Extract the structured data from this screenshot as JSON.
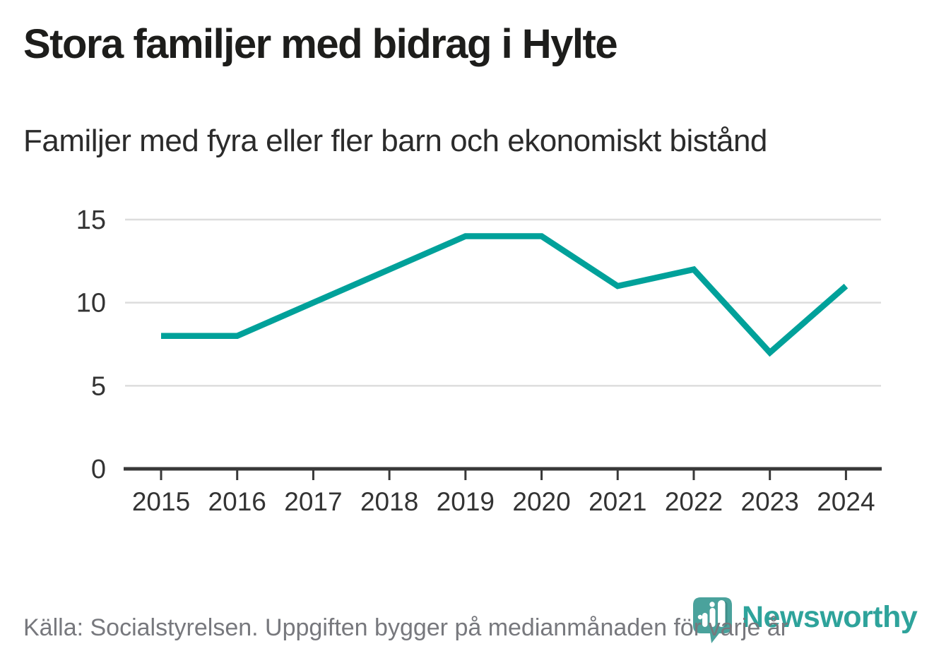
{
  "header": {
    "title": "Stora familjer med bidrag i Hylte",
    "subtitle": "Familjer med fyra eller fler barn och ekonomiskt bistånd"
  },
  "chart_data": {
    "type": "line",
    "title": "Stora familjer med bidrag i Hylte",
    "subtitle": "Familjer med fyra eller fler barn och ekonomiskt bistånd",
    "categories": [
      "2015",
      "2016",
      "2017",
      "2018",
      "2019",
      "2020",
      "2021",
      "2022",
      "2023",
      "2024"
    ],
    "series": [
      {
        "name": "Familjer med fyra eller fler barn och ekonomiskt bistånd",
        "values": [
          8,
          8,
          10,
          12,
          14,
          14,
          11,
          12,
          7,
          11
        ]
      }
    ],
    "xlabel": "",
    "ylabel": "",
    "ylim": [
      0,
      15
    ],
    "yticks": [
      0,
      5,
      10,
      15
    ],
    "grid": true,
    "legend": false,
    "line_color": "#00a19a"
  },
  "footer": {
    "source": "Källa: Socialstyrelsen. Uppgiften bygger på medianmånaden för varje år"
  },
  "brand": {
    "name": "Newsworthy",
    "icon": "newsworthy-speech-bubble-barchart-icon",
    "icon_color": "#4aa29c",
    "icon_shadow_color": "#3f8e89",
    "text_color": "#2ea39b"
  },
  "colors": {
    "background": "#ffffff",
    "accent": "#00a19a",
    "title_text": "#1d1d1b",
    "subtitle_text": "#2b2b2b",
    "axis": "#383838",
    "gridline": "#dddddd",
    "tick_label": "#333333",
    "source_text": "#77787d"
  }
}
